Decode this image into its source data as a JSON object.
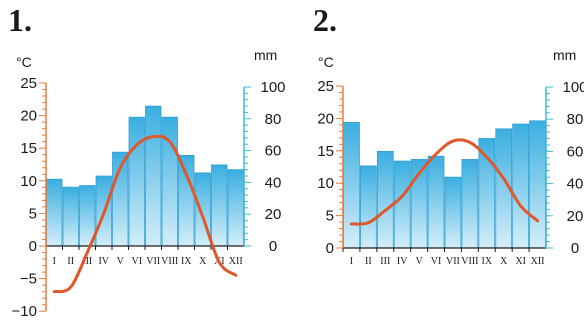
{
  "chart_data": [
    {
      "type": "bar+line",
      "title": "1.",
      "categories": [
        "I",
        "II",
        "III",
        "IV",
        "V",
        "VI",
        "VII",
        "VIII",
        "IX",
        "X",
        "XI",
        "XII"
      ],
      "temp_label": "°C",
      "precip_label": "mm",
      "temp_ylim": [
        -10,
        25
      ],
      "temp_ticks": [
        25,
        20,
        15,
        10,
        5,
        0,
        -5,
        -10
      ],
      "temp_tick_labels": [
        "25",
        "20",
        "15",
        "10",
        "5",
        "0",
        "−5",
        "−10"
      ],
      "precip_ylim": [
        0,
        100
      ],
      "precip_ticks": [
        100,
        80,
        60,
        40,
        20,
        0
      ],
      "series": [
        {
          "kind": "precipitation",
          "unit": "mm",
          "values": [
            42,
            37,
            38,
            44,
            59,
            81,
            88,
            81,
            57,
            46,
            51,
            48
          ]
        },
        {
          "kind": "temperature",
          "unit": "°C",
          "values": [
            -7,
            -6.3,
            -1,
            5,
            12,
            15.5,
            16.8,
            16,
            11,
            4.5,
            -2.5,
            -4.5
          ]
        }
      ]
    },
    {
      "type": "bar+line",
      "title": "2.",
      "categories": [
        "I",
        "II",
        "III",
        "IV",
        "V",
        "VI",
        "VII",
        "VIII",
        "IX",
        "X",
        "XI",
        "XII"
      ],
      "temp_label": "°C",
      "precip_label": "mm",
      "temp_ylim": [
        0,
        25
      ],
      "temp_ticks": [
        25,
        20,
        15,
        10,
        5,
        0
      ],
      "temp_tick_labels": [
        "25",
        "20",
        "15",
        "10",
        "5",
        "0"
      ],
      "precip_ylim": [
        0,
        100
      ],
      "precip_ticks": [
        100,
        80,
        60,
        40,
        20,
        0
      ],
      "series": [
        {
          "kind": "precipitation",
          "unit": "mm",
          "values": [
            78,
            51,
            60,
            54,
            55,
            57,
            44,
            55,
            68,
            74,
            77,
            79
          ]
        },
        {
          "kind": "temperature",
          "unit": "°C",
          "values": [
            3.7,
            3.9,
            5.8,
            8.0,
            11.5,
            14.5,
            16.5,
            16.3,
            14.0,
            10.7,
            6.5,
            4.2
          ]
        }
      ]
    }
  ],
  "colors": {
    "temperature_axis": "#ee7a3b",
    "precipitation_axis": "#3fb8d4",
    "temperature_line": "#e0572a",
    "bar_top": "#3aaee0",
    "bar_bottom": "#d4eef9",
    "bar_stroke": "#2f9fd3"
  }
}
